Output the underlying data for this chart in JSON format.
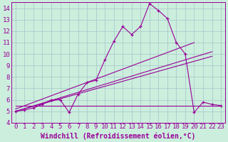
{
  "xlabel": "Windchill (Refroidissement éolien,°C)",
  "bg_color": "#cceedd",
  "grid_color": "#aacccc",
  "line_color": "#990099",
  "xlim": [
    -0.5,
    23.5
  ],
  "ylim": [
    4,
    14.5
  ],
  "xticks": [
    0,
    1,
    2,
    3,
    4,
    5,
    6,
    7,
    8,
    9,
    10,
    11,
    12,
    13,
    14,
    15,
    16,
    17,
    18,
    19,
    20,
    21,
    22,
    23
  ],
  "yticks": [
    4,
    5,
    6,
    7,
    8,
    9,
    10,
    11,
    12,
    13,
    14
  ],
  "series1_x": [
    0,
    1,
    2,
    3,
    4,
    5,
    6,
    7,
    8,
    9,
    10,
    11,
    12,
    13,
    14,
    15,
    16,
    17,
    18,
    19,
    20,
    21,
    22,
    23
  ],
  "series1_y": [
    5.0,
    5.1,
    5.3,
    5.6,
    6.0,
    6.0,
    4.9,
    6.5,
    7.5,
    7.7,
    9.5,
    11.1,
    12.4,
    11.7,
    12.4,
    14.4,
    13.8,
    13.1,
    11.0,
    10.0,
    4.9,
    5.8,
    5.6,
    5.5
  ],
  "trend1_x": [
    0,
    22
  ],
  "trend1_y": [
    5.0,
    9.8
  ],
  "trend2_x": [
    0,
    22
  ],
  "trend2_y": [
    5.0,
    10.2
  ],
  "trend3_x": [
    0,
    20
  ],
  "trend3_y": [
    5.2,
    11.0
  ],
  "hline_x": [
    0,
    23
  ],
  "hline_y": [
    5.5,
    5.5
  ],
  "font_size_xlabel": 7,
  "font_size_tick": 6.5,
  "lw": 0.8,
  "ms": 2.5
}
